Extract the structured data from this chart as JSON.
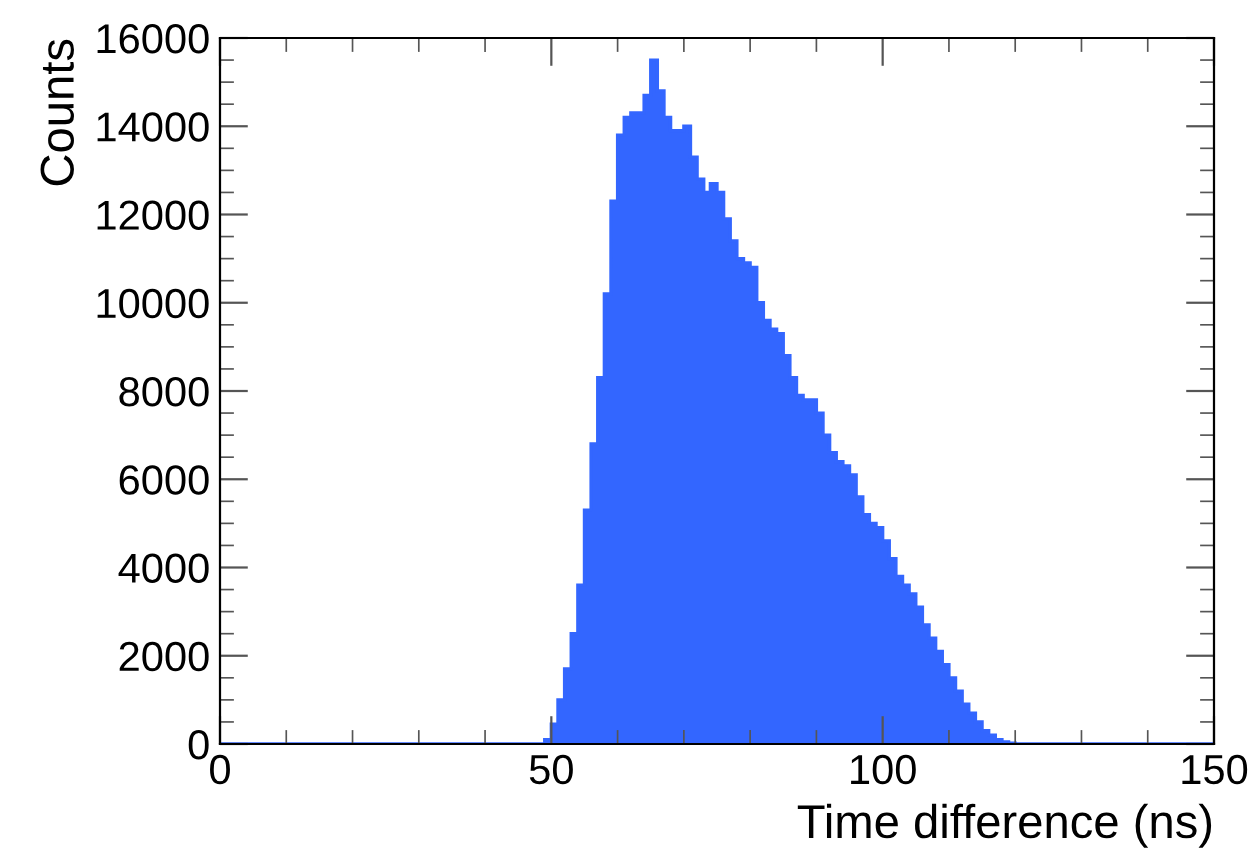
{
  "chart_data": {
    "type": "histogram",
    "xlabel": "Time difference (ns)",
    "ylabel": "Counts",
    "bins": [
      0,
      1,
      2,
      3,
      4,
      5,
      6,
      7,
      8,
      9,
      10,
      11,
      12,
      13,
      14,
      15,
      16,
      17,
      18,
      19,
      20,
      21,
      22,
      23,
      24,
      25,
      26,
      27,
      28,
      29,
      30,
      31,
      32,
      33,
      34,
      35,
      36,
      37,
      38,
      39,
      40,
      41,
      42,
      43,
      44,
      45,
      46,
      47,
      48,
      49,
      50,
      51,
      52,
      53,
      54,
      55,
      56,
      57,
      58,
      59,
      60,
      61,
      62,
      63,
      64,
      65,
      66,
      67,
      68,
      69,
      70,
      71,
      72,
      73,
      74,
      75,
      76,
      77,
      78,
      79,
      80,
      81,
      82,
      83,
      84,
      85,
      86,
      87,
      88,
      89,
      90,
      91,
      92,
      93,
      94,
      95,
      96,
      97,
      98,
      99,
      100,
      101,
      102,
      103,
      104,
      105,
      106,
      107,
      108,
      109,
      110,
      111,
      112,
      113,
      114,
      115,
      116,
      117,
      118,
      119,
      120,
      121,
      122,
      123,
      124,
      125,
      126,
      127,
      128,
      129,
      130,
      131,
      132,
      133,
      134,
      135,
      136,
      137,
      138,
      139,
      140,
      141,
      142,
      143,
      144,
      145,
      146,
      147,
      148,
      149,
      150
    ],
    "values": [
      0,
      0,
      0,
      0,
      0,
      0,
      0,
      0,
      0,
      0,
      0,
      0,
      0,
      0,
      0,
      0,
      0,
      0,
      0,
      0,
      0,
      0,
      0,
      0,
      0,
      0,
      0,
      0,
      0,
      0,
      0,
      0,
      0,
      0,
      0,
      0,
      0,
      0,
      0,
      0,
      0,
      0,
      0,
      0,
      0,
      0,
      0,
      0,
      0,
      100,
      450,
      1000,
      1700,
      2500,
      3600,
      5300,
      6800,
      8300,
      10200,
      12300,
      13800,
      14200,
      14300,
      14300,
      14700,
      15500,
      14800,
      14200,
      13900,
      13900,
      14000,
      13300,
      12800,
      12500,
      12700,
      12500,
      11900,
      11400,
      11000,
      10900,
      10800,
      10000,
      9600,
      9400,
      9300,
      8800,
      8300,
      7900,
      7800,
      7800,
      7500,
      7000,
      6600,
      6400,
      6300,
      6100,
      5600,
      5200,
      5000,
      4900,
      4600,
      4200,
      3800,
      3600,
      3400,
      3100,
      2700,
      2400,
      2100,
      1800,
      1500,
      1200,
      900,
      700,
      500,
      300,
      200,
      100,
      50,
      20,
      0,
      0,
      0,
      0,
      0,
      0,
      0,
      0,
      0,
      0,
      0,
      0,
      0,
      0,
      0,
      0,
      0,
      0,
      0,
      0,
      0,
      0,
      0,
      0,
      0,
      0,
      0,
      0,
      0,
      0
    ],
    "color": "#3366ff",
    "xlim": [
      0,
      150
    ],
    "xticks": [
      0,
      50,
      100,
      150
    ],
    "ylim": [
      0,
      16000
    ],
    "yticks": [
      0,
      2000,
      4000,
      6000,
      8000,
      10000,
      12000,
      14000,
      16000
    ],
    "grid": false
  }
}
